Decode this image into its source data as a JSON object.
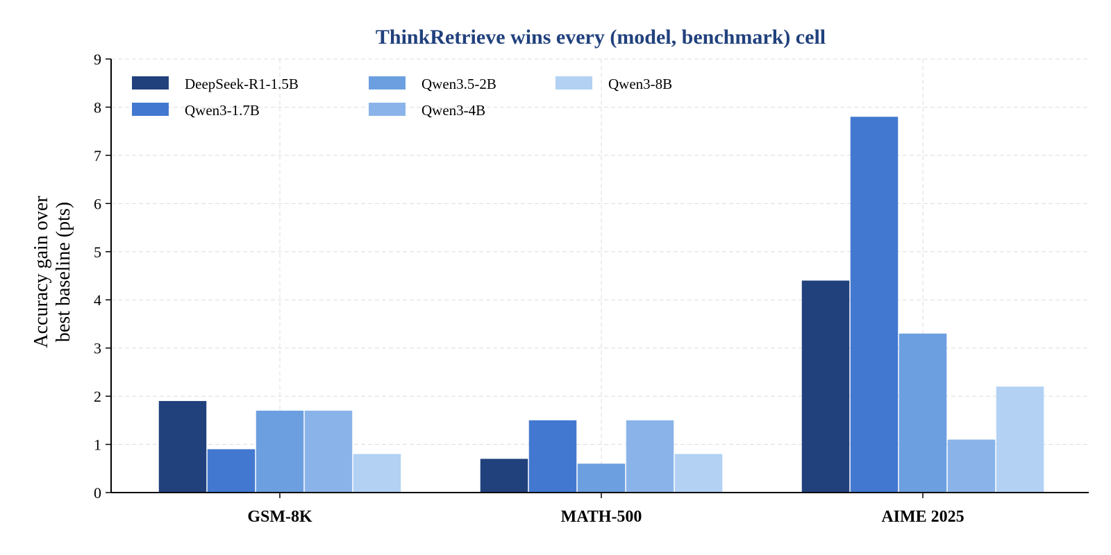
{
  "chart_data": {
    "type": "bar",
    "title": "ThinkRetrieve wins every (model, benchmark) cell",
    "ylabel_lines": [
      "Accuracy gain over",
      "best baseline (pts)"
    ],
    "xlabel": "",
    "categories": [
      "GSM-8K",
      "MATH-500",
      "AIME 2025"
    ],
    "ylim": [
      0,
      9
    ],
    "yticks": [
      "0",
      "1",
      "2",
      "3",
      "4",
      "5",
      "6",
      "7",
      "8",
      "9"
    ],
    "grid": true,
    "legend_position": "top-left",
    "series": [
      {
        "name": "DeepSeek-R1-1.5B",
        "color": "#21417d",
        "values": [
          1.9,
          0.7,
          4.4
        ]
      },
      {
        "name": "Qwen3-1.7B",
        "color": "#4278cf",
        "values": [
          0.9,
          1.5,
          7.8
        ]
      },
      {
        "name": "Qwen3.5-2B",
        "color": "#6c9fe0",
        "values": [
          1.7,
          0.6,
          3.3
        ]
      },
      {
        "name": "Qwen3-4B",
        "color": "#8ab4e9",
        "values": [
          1.7,
          1.5,
          1.1
        ]
      },
      {
        "name": "Qwen3-8B",
        "color": "#b2d1f3",
        "values": [
          0.8,
          0.8,
          2.2
        ]
      }
    ],
    "title_color": "#21417d"
  }
}
